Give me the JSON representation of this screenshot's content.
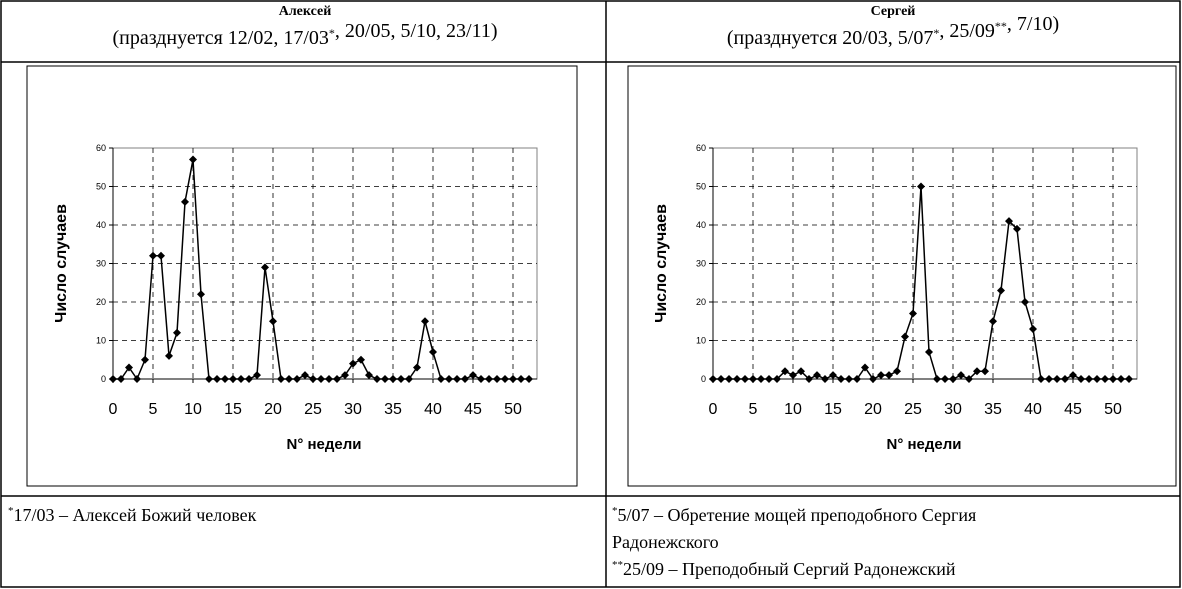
{
  "panels": [
    {
      "name": "Алексей",
      "subtitle": [
        {
          "text": "(празднуется 12/02, 17/03",
          "sup": "*"
        },
        {
          "text": ", 20/05, 5/10, 23/11)"
        }
      ],
      "footnotes": [
        {
          "sup": "*",
          "text": "17/03 – Алексей Божий человек"
        }
      ]
    },
    {
      "name": "Сергей",
      "subtitle": [
        {
          "text": "(празднуется 20/03, 5/07",
          "sup": "*"
        },
        {
          "text": ", 25/09",
          "sup": "**"
        },
        {
          "text": ", 7/10)"
        }
      ],
      "footnotes": [
        {
          "sup": "*",
          "text": "5/07 – Обретение мощей преподобного Сергия"
        },
        {
          "text": "Радонежского"
        },
        {
          "sup": "**",
          "text": "25/09 – Преподобный Сергий Радонежский"
        }
      ]
    }
  ],
  "chart_data": [
    {
      "type": "line",
      "xlabel": "N° недели",
      "ylabel": "Число случаев",
      "color": "#000000",
      "grid": true,
      "x": [
        0,
        1,
        2,
        3,
        4,
        5,
        6,
        7,
        8,
        9,
        10,
        11,
        12,
        13,
        14,
        15,
        16,
        17,
        18,
        19,
        20,
        21,
        22,
        23,
        24,
        25,
        26,
        27,
        28,
        29,
        30,
        31,
        32,
        33,
        34,
        35,
        36,
        37,
        38,
        39,
        40,
        41,
        42,
        43,
        44,
        45,
        46,
        47,
        48,
        49,
        50,
        51,
        52
      ],
      "values": [
        0,
        0,
        3,
        0,
        5,
        32,
        32,
        6,
        12,
        46,
        57,
        22,
        0,
        0,
        0,
        0,
        0,
        0,
        1,
        29,
        15,
        0,
        0,
        0,
        1,
        0,
        0,
        0,
        0,
        1,
        4,
        5,
        1,
        0,
        0,
        0,
        0,
        0,
        3,
        15,
        7,
        0,
        0,
        0,
        0,
        1,
        0,
        0,
        0,
        0,
        0,
        0,
        0
      ],
      "xlim": [
        0,
        53
      ],
      "xticks": [
        0,
        5,
        10,
        15,
        20,
        25,
        30,
        35,
        40,
        45,
        50
      ],
      "ylim": [
        0,
        60
      ],
      "yticks": [
        0,
        10,
        20,
        30,
        40,
        50,
        60
      ]
    },
    {
      "type": "line",
      "xlabel": "N° недели",
      "ylabel": "Число случаев",
      "color": "#000000",
      "grid": true,
      "x": [
        0,
        1,
        2,
        3,
        4,
        5,
        6,
        7,
        8,
        9,
        10,
        11,
        12,
        13,
        14,
        15,
        16,
        17,
        18,
        19,
        20,
        21,
        22,
        23,
        24,
        25,
        26,
        27,
        28,
        29,
        30,
        31,
        32,
        33,
        34,
        35,
        36,
        37,
        38,
        39,
        40,
        41,
        42,
        43,
        44,
        45,
        46,
        47,
        48,
        49,
        50,
        51,
        52
      ],
      "values": [
        0,
        0,
        0,
        0,
        0,
        0,
        0,
        0,
        0,
        2,
        1,
        2,
        0,
        1,
        0,
        1,
        0,
        0,
        0,
        3,
        0,
        1,
        1,
        2,
        11,
        17,
        50,
        7,
        0,
        0,
        0,
        1,
        0,
        2,
        2,
        15,
        23,
        41,
        39,
        20,
        13,
        0,
        0,
        0,
        0,
        1,
        0,
        0,
        0,
        0,
        0,
        0,
        0
      ],
      "xlim": [
        0,
        53
      ],
      "xticks": [
        0,
        5,
        10,
        15,
        20,
        25,
        30,
        35,
        40,
        45,
        50
      ],
      "ylim": [
        0,
        60
      ],
      "yticks": [
        0,
        10,
        20,
        30,
        40,
        50,
        60
      ]
    }
  ]
}
